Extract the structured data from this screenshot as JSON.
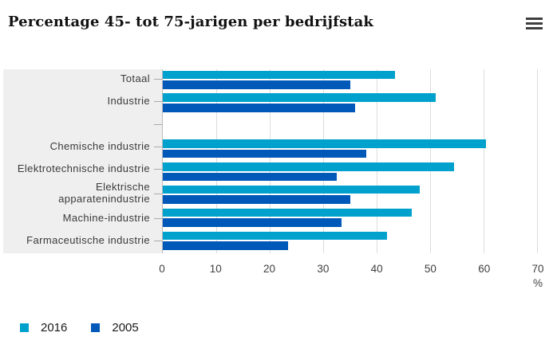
{
  "header": {
    "title": "Percentage 45- tot 75-jarigen per bedrijfstak",
    "menu_icon": "hamburger-icon"
  },
  "chart_data": {
    "type": "bar",
    "orientation": "horizontal",
    "title": "Percentage 45- tot 75-jarigen per bedrijfstak",
    "categories": [
      "Totaal",
      "Industrie",
      "",
      "Chemische industrie",
      "Elektrotechnische industrie",
      "Elektrische apparatenindustrie",
      "Machine-industrie",
      "Farmaceutische industrie"
    ],
    "series": [
      {
        "name": "2016",
        "color": "#00a1cd",
        "values": [
          43.5,
          51,
          null,
          60.5,
          54.5,
          48,
          46.5,
          42
        ]
      },
      {
        "name": "2005",
        "color": "#0058b8",
        "values": [
          35,
          36,
          null,
          38,
          32.5,
          35,
          33.5,
          23.5
        ]
      }
    ],
    "xlim": [
      0,
      70
    ],
    "xticks": [
      0,
      10,
      20,
      30,
      40,
      50,
      60,
      70
    ],
    "xlabel": "%",
    "grid": "vertical",
    "gridline_color": "#dcdcdc",
    "label_panel_color": "#efefef",
    "legend_position": "bottom-left",
    "legend": [
      "2016",
      "2005"
    ]
  }
}
